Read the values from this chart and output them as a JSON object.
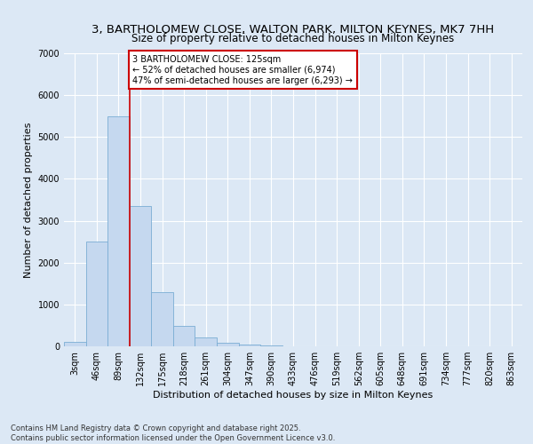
{
  "title_line1": "3, BARTHOLOMEW CLOSE, WALTON PARK, MILTON KEYNES, MK7 7HH",
  "title_line2": "Size of property relative to detached houses in Milton Keynes",
  "xlabel": "Distribution of detached houses by size in Milton Keynes",
  "ylabel": "Number of detached properties",
  "bar_color": "#c5d8ef",
  "bar_edge_color": "#7aadd4",
  "categories": [
    "3sqm",
    "46sqm",
    "89sqm",
    "132sqm",
    "175sqm",
    "218sqm",
    "261sqm",
    "304sqm",
    "347sqm",
    "390sqm",
    "433sqm",
    "476sqm",
    "519sqm",
    "562sqm",
    "605sqm",
    "648sqm",
    "691sqm",
    "734sqm",
    "777sqm",
    "820sqm",
    "863sqm"
  ],
  "values": [
    100,
    2500,
    5500,
    3350,
    1300,
    480,
    210,
    90,
    40,
    30,
    0,
    0,
    0,
    0,
    0,
    0,
    0,
    0,
    0,
    0,
    0
  ],
  "ylim": [
    0,
    7000
  ],
  "yticks": [
    0,
    1000,
    2000,
    3000,
    4000,
    5000,
    6000,
    7000
  ],
  "vline_x_index": 2.5,
  "vline_color": "#cc0000",
  "ann_title": "3 BARTHOLOMEW CLOSE: 125sqm",
  "ann_line2": "← 52% of detached houses are smaller (6,974)",
  "ann_line3": "47% of semi-detached houses are larger (6,293) →",
  "annotation_box_color": "#cc0000",
  "annotation_bg": "#ffffff",
  "footer_line1": "Contains HM Land Registry data © Crown copyright and database right 2025.",
  "footer_line2": "Contains public sector information licensed under the Open Government Licence v3.0.",
  "bg_color": "#dce8f5",
  "grid_color": "#ffffff",
  "title_fontsize": 9.5,
  "subtitle_fontsize": 8.5,
  "axis_label_fontsize": 8,
  "tick_fontsize": 7,
  "ann_fontsize": 7,
  "footer_fontsize": 6
}
